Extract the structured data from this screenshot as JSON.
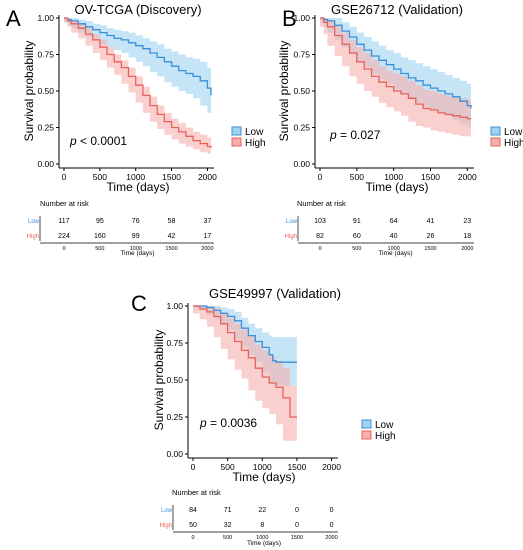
{
  "colors": {
    "low": "#3b8fd9",
    "high": "#e8605c",
    "low_band": "#9fd3f2",
    "high_band": "#f6b1ad"
  },
  "panels": [
    {
      "letter": "A",
      "title": "OV-TCGA (Discovery)",
      "p_prefix": "p",
      "p_rest": " < 0.0001"
    },
    {
      "letter": "B",
      "title": "GSE26712 (Validation)",
      "p_prefix": "p",
      "p_rest": " = 0.027"
    },
    {
      "letter": "C",
      "title": "GSE49997 (Validation)",
      "p_prefix": "p",
      "p_rest": " = 0.0036"
    }
  ],
  "axis_text": {
    "ylabel": "Survival probability",
    "xlabel": "Time (days)",
    "risk_title": "Number at risk",
    "risk_xlabel": "Time (days)"
  },
  "legend": {
    "low": "Low",
    "high": "High"
  },
  "risk_row_labels": {
    "low": "Low",
    "high": "High"
  },
  "chart_data": [
    {
      "type": "line",
      "title": "OV-TCGA (Discovery)",
      "xlabel": "Time (days)",
      "ylabel": "Survival probability",
      "xlim": [
        0,
        2050
      ],
      "ylim": [
        0,
        1
      ],
      "xticks": [
        "0",
        "500",
        "1000",
        "1500",
        "2000"
      ],
      "yticks": [
        "0.00",
        "0.25",
        "0.50",
        "0.75",
        "1.00"
      ],
      "legend": "right",
      "series": [
        {
          "name": "Low",
          "x": [
            0,
            50,
            100,
            200,
            300,
            400,
            500,
            600,
            700,
            800,
            900,
            1000,
            1100,
            1200,
            1300,
            1400,
            1500,
            1600,
            1700,
            1800,
            1900,
            2000,
            2050
          ],
          "y": [
            1,
            0.99,
            0.98,
            0.96,
            0.94,
            0.92,
            0.9,
            0.88,
            0.86,
            0.85,
            0.83,
            0.81,
            0.79,
            0.76,
            0.73,
            0.7,
            0.67,
            0.64,
            0.62,
            0.6,
            0.57,
            0.52,
            0.47
          ],
          "lower": [
            1,
            0.97,
            0.95,
            0.93,
            0.9,
            0.87,
            0.85,
            0.82,
            0.8,
            0.78,
            0.76,
            0.73,
            0.7,
            0.67,
            0.63,
            0.6,
            0.56,
            0.53,
            0.5,
            0.48,
            0.45,
            0.4,
            0.35
          ],
          "upper": [
            1,
            1,
            1,
            0.99,
            0.98,
            0.96,
            0.95,
            0.93,
            0.92,
            0.91,
            0.9,
            0.88,
            0.86,
            0.84,
            0.82,
            0.79,
            0.77,
            0.75,
            0.73,
            0.72,
            0.7,
            0.66,
            0.62
          ]
        },
        {
          "name": "High",
          "x": [
            0,
            50,
            100,
            200,
            300,
            400,
            500,
            600,
            700,
            800,
            900,
            1000,
            1100,
            1200,
            1300,
            1400,
            1500,
            1600,
            1700,
            1800,
            1900,
            2000,
            2050
          ],
          "y": [
            1,
            0.98,
            0.96,
            0.93,
            0.89,
            0.85,
            0.8,
            0.75,
            0.7,
            0.66,
            0.6,
            0.54,
            0.47,
            0.4,
            0.34,
            0.29,
            0.25,
            0.22,
            0.19,
            0.16,
            0.14,
            0.12,
            0.11
          ],
          "lower": [
            1,
            0.97,
            0.94,
            0.9,
            0.86,
            0.81,
            0.76,
            0.71,
            0.66,
            0.61,
            0.55,
            0.49,
            0.42,
            0.35,
            0.29,
            0.24,
            0.2,
            0.17,
            0.14,
            0.12,
            0.1,
            0.08,
            0.07
          ],
          "upper": [
            1,
            0.99,
            0.98,
            0.96,
            0.93,
            0.89,
            0.85,
            0.8,
            0.75,
            0.71,
            0.66,
            0.6,
            0.53,
            0.46,
            0.4,
            0.35,
            0.31,
            0.28,
            0.25,
            0.22,
            0.2,
            0.18,
            0.16
          ]
        }
      ],
      "risk_table": {
        "times": [
          "0",
          "500",
          "1000",
          "1500",
          "2000"
        ],
        "low": [
          "117",
          "95",
          "76",
          "58",
          "37"
        ],
        "high": [
          "224",
          "160",
          "99",
          "42",
          "17"
        ]
      }
    },
    {
      "type": "line",
      "title": "GSE26712 (Validation)",
      "xlabel": "Time (days)",
      "ylabel": "Survival probability",
      "xlim": [
        0,
        2050
      ],
      "ylim": [
        0,
        1
      ],
      "xticks": [
        "0",
        "500",
        "1000",
        "1500",
        "2000"
      ],
      "yticks": [
        "0.00",
        "0.25",
        "0.50",
        "0.75",
        "1.00"
      ],
      "legend": "right",
      "series": [
        {
          "name": "Low",
          "x": [
            0,
            50,
            100,
            200,
            300,
            400,
            500,
            600,
            700,
            800,
            900,
            1000,
            1100,
            1200,
            1300,
            1400,
            1500,
            1600,
            1700,
            1800,
            1900,
            2000,
            2050
          ],
          "y": [
            1,
            0.99,
            0.98,
            0.95,
            0.91,
            0.87,
            0.82,
            0.78,
            0.74,
            0.71,
            0.68,
            0.65,
            0.62,
            0.59,
            0.57,
            0.54,
            0.52,
            0.5,
            0.48,
            0.46,
            0.43,
            0.4,
            0.38
          ],
          "lower": [
            1,
            0.97,
            0.94,
            0.9,
            0.85,
            0.8,
            0.75,
            0.7,
            0.66,
            0.62,
            0.58,
            0.55,
            0.51,
            0.48,
            0.45,
            0.42,
            0.39,
            0.37,
            0.35,
            0.33,
            0.3,
            0.27,
            0.25
          ],
          "upper": [
            1,
            1,
            1,
            1,
            0.97,
            0.94,
            0.9,
            0.87,
            0.84,
            0.81,
            0.78,
            0.76,
            0.73,
            0.71,
            0.69,
            0.67,
            0.65,
            0.63,
            0.61,
            0.59,
            0.57,
            0.55,
            0.53
          ]
        },
        {
          "name": "High",
          "x": [
            0,
            50,
            100,
            200,
            300,
            400,
            500,
            600,
            700,
            800,
            900,
            1000,
            1100,
            1200,
            1300,
            1400,
            1500,
            1600,
            1700,
            1800,
            1900,
            2000,
            2050
          ],
          "y": [
            1,
            0.97,
            0.94,
            0.88,
            0.82,
            0.76,
            0.7,
            0.65,
            0.6,
            0.56,
            0.53,
            0.5,
            0.48,
            0.45,
            0.41,
            0.38,
            0.37,
            0.35,
            0.34,
            0.33,
            0.32,
            0.31,
            0.31
          ],
          "lower": [
            1,
            0.94,
            0.89,
            0.81,
            0.74,
            0.67,
            0.6,
            0.55,
            0.5,
            0.46,
            0.42,
            0.39,
            0.36,
            0.33,
            0.29,
            0.26,
            0.25,
            0.23,
            0.22,
            0.21,
            0.2,
            0.19,
            0.19
          ],
          "upper": [
            1,
            1,
            0.99,
            0.95,
            0.9,
            0.85,
            0.8,
            0.76,
            0.71,
            0.67,
            0.64,
            0.62,
            0.6,
            0.57,
            0.54,
            0.51,
            0.5,
            0.48,
            0.47,
            0.46,
            0.45,
            0.44,
            0.44
          ]
        }
      ],
      "risk_table": {
        "times": [
          "0",
          "500",
          "1000",
          "1500",
          "2000"
        ],
        "low": [
          "103",
          "91",
          "64",
          "41",
          "23"
        ],
        "high": [
          "82",
          "60",
          "40",
          "26",
          "18"
        ]
      }
    },
    {
      "type": "line",
      "title": "GSE49997 (Validation)",
      "xlabel": "Time (days)",
      "ylabel": "Survival probability",
      "xlim": [
        0,
        2050
      ],
      "ylim": [
        0,
        1
      ],
      "xticks": [
        "0",
        "500",
        "1000",
        "1500",
        "2000"
      ],
      "yticks": [
        "0.00",
        "0.25",
        "0.50",
        "0.75",
        "1.00"
      ],
      "legend": "right",
      "series": [
        {
          "name": "Low",
          "x": [
            0,
            100,
            200,
            300,
            400,
            500,
            600,
            700,
            800,
            900,
            1000,
            1100,
            1150,
            1200,
            1300,
            1400,
            1500
          ],
          "y": [
            1,
            1,
            0.99,
            0.97,
            0.95,
            0.93,
            0.9,
            0.85,
            0.8,
            0.76,
            0.72,
            0.67,
            0.63,
            0.62,
            0.62,
            0.62,
            0.62
          ],
          "lower": [
            1,
            0.99,
            0.97,
            0.94,
            0.91,
            0.88,
            0.84,
            0.78,
            0.72,
            0.67,
            0.62,
            0.55,
            0.48,
            0.46,
            0.46,
            0.46,
            0.46
          ],
          "upper": [
            1,
            1,
            1,
            1,
            0.99,
            0.98,
            0.96,
            0.92,
            0.88,
            0.85,
            0.82,
            0.8,
            0.79,
            0.79,
            0.79,
            0.79,
            0.79
          ]
        },
        {
          "name": "High",
          "x": [
            0,
            100,
            200,
            300,
            400,
            500,
            600,
            700,
            800,
            900,
            1000,
            1100,
            1200,
            1300,
            1400,
            1450,
            1500
          ],
          "y": [
            1,
            0.98,
            0.96,
            0.93,
            0.88,
            0.82,
            0.76,
            0.7,
            0.65,
            0.58,
            0.52,
            0.48,
            0.45,
            0.38,
            0.25,
            0.25,
            0.25
          ],
          "lower": [
            1,
            0.95,
            0.91,
            0.86,
            0.79,
            0.71,
            0.64,
            0.57,
            0.51,
            0.43,
            0.36,
            0.31,
            0.27,
            0.2,
            0.09,
            0.09,
            0.09
          ],
          "upper": [
            1,
            1,
            1,
            0.99,
            0.96,
            0.92,
            0.88,
            0.84,
            0.8,
            0.74,
            0.7,
            0.66,
            0.63,
            0.58,
            0.46,
            0.46,
            0.46
          ]
        }
      ],
      "risk_table": {
        "times": [
          "0",
          "500",
          "1000",
          "1500",
          "2000"
        ],
        "low": [
          "84",
          "71",
          "22",
          "0",
          "0"
        ],
        "high": [
          "50",
          "32",
          "8",
          "0",
          "0"
        ]
      }
    }
  ]
}
